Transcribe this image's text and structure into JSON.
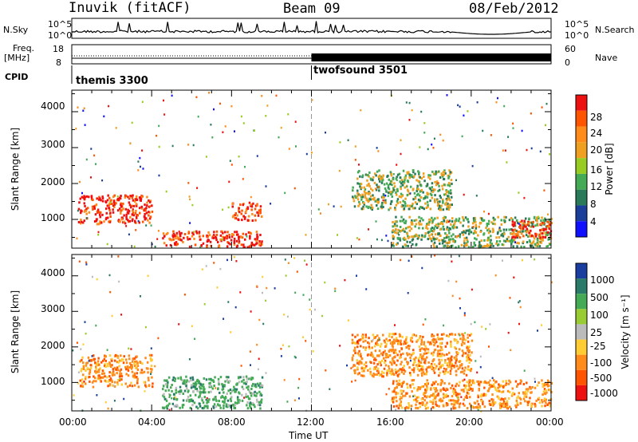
{
  "header": {
    "station": "Inuvik (fitACF)",
    "beam": "Beam 09",
    "date": "08/Feb/2012"
  },
  "top_panels": {
    "nsky_label": "N.Sky",
    "nsearch_label": "N.Search",
    "freq_label": "Freq.",
    "freq_unit": "[MHz]",
    "nave_label": "Nave",
    "cpid_label": "CPID",
    "left_ticks_top": [
      "10^5",
      "10^0"
    ],
    "right_ticks_top": [
      "10^5",
      "10^0"
    ],
    "left_ticks_freq": [
      "18",
      "8"
    ],
    "right_ticks_nave": [
      "60",
      "0"
    ]
  },
  "cpid_segments": [
    {
      "name": "themis 3300",
      "start": "00:00"
    },
    {
      "name": "twofsound 3501",
      "start": "12:00"
    }
  ],
  "chart_data": [
    {
      "type": "heatmap",
      "title": "",
      "ylabel": "Slant Range [km]",
      "xlabel": "",
      "ylim": [
        200,
        4600
      ],
      "y_ticks": [
        "1000",
        "2000",
        "3000",
        "4000"
      ],
      "colorbar": {
        "label": "Power [dB]",
        "ticks": [
          "28",
          "24",
          "20",
          "16",
          "12",
          "8",
          "4"
        ],
        "colors": [
          "#ee1111",
          "#ff5500",
          "#ff8c1a",
          "#f0a020",
          "#99cc22",
          "#44aa55",
          "#2a7a5a",
          "#1a3e9a",
          "#1010ff"
        ]
      },
      "regions": [
        {
          "x": [
            0.3,
            4.0
          ],
          "y": [
            900,
            1700
          ],
          "level": "high"
        },
        {
          "x": [
            4.5,
            9.5
          ],
          "y": [
            250,
            700
          ],
          "level": "high"
        },
        {
          "x": [
            8.0,
            9.5
          ],
          "y": [
            1000,
            1500
          ],
          "level": "high"
        },
        {
          "x": [
            14.0,
            19.0
          ],
          "y": [
            1300,
            2400
          ],
          "level": "medium"
        },
        {
          "x": [
            16.0,
            24.0
          ],
          "y": [
            250,
            1100
          ],
          "level": "medium"
        },
        {
          "x": [
            22.0,
            24.0
          ],
          "y": [
            500,
            1000
          ],
          "level": "high"
        }
      ]
    },
    {
      "type": "heatmap",
      "title": "",
      "ylabel": "Slant Range [km]",
      "xlabel": "Time UT",
      "ylim": [
        200,
        4600
      ],
      "y_ticks": [
        "1000",
        "2000",
        "3000",
        "4000"
      ],
      "colorbar": {
        "label": "Velocity [m s⁻¹]",
        "ticks": [
          "1000",
          "500",
          "100",
          "25",
          "-25",
          "-100",
          "-500",
          "-1000"
        ],
        "colors": [
          "#1a3ea0",
          "#2a7a6a",
          "#44aa55",
          "#99cc33",
          "#bbbbbb",
          "#ffcc33",
          "#ff8c1a",
          "#ff5500",
          "#ee1111"
        ]
      },
      "regions": [
        {
          "x": [
            0.3,
            4.0
          ],
          "y": [
            900,
            1800
          ],
          "level": "-100"
        },
        {
          "x": [
            4.5,
            9.5
          ],
          "y": [
            300,
            1200
          ],
          "level": "100"
        },
        {
          "x": [
            14.0,
            20.0
          ],
          "y": [
            1200,
            2400
          ],
          "level": "-100"
        },
        {
          "x": [
            16.0,
            24.0
          ],
          "y": [
            300,
            1100
          ],
          "level": "-100"
        }
      ]
    }
  ],
  "x_axis": {
    "label": "Time UT",
    "ticks": [
      "00:00",
      "04:00",
      "08:00",
      "12:00",
      "16:00",
      "20:00",
      "00:00"
    ]
  }
}
